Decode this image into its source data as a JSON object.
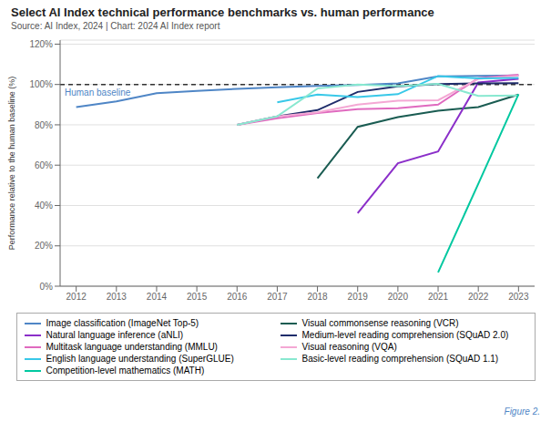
{
  "chart_data": {
    "type": "line",
    "title": "Select AI Index technical performance benchmarks vs. human performance",
    "subtitle": "Source: AI Index, 2024 | Chart: 2024 AI Index report",
    "y_label": "Performance relative to the human baseline (%)",
    "annotations": [
      "Figure 2."
    ],
    "xlim": [
      2011.6,
      2023.4
    ],
    "xticks": [
      2012,
      2013,
      2014,
      2015,
      2016,
      2017,
      2018,
      2019,
      2020,
      2021,
      2022,
      2023
    ],
    "ylim": [
      0,
      1.22
    ],
    "yticks": [
      {
        "value": 0,
        "label": "0%"
      },
      {
        "value": 0.2,
        "label": "20%"
      },
      {
        "value": 0.4,
        "label": "40%"
      },
      {
        "value": 0.6,
        "label": "60%"
      },
      {
        "value": 0.8,
        "label": "80%"
      },
      {
        "value": 1.0,
        "label": "100%"
      },
      {
        "value": 1.2,
        "label": "120%"
      }
    ],
    "grid": true,
    "reference_lines": [
      {
        "y": 1.0,
        "label": "Human baseline",
        "color": "#333333",
        "line_style": "dashed"
      }
    ],
    "series": [
      {
        "name": "Image classification (ImageNet Top-5)",
        "color": "#4f86c6",
        "x": [
          2012,
          2013,
          2014,
          2015,
          2016,
          2017,
          2018,
          2019,
          2020,
          2021,
          2022,
          2023
        ],
        "values": [
          0.888,
          0.916,
          0.957,
          0.968,
          0.978,
          0.986,
          0.993,
          0.998,
          1.005,
          1.04,
          1.043,
          1.045
        ]
      },
      {
        "name": "Visual commonsense reasoning (VCR)",
        "color": "#1a5c52",
        "x": [
          2018,
          2019,
          2020,
          2021,
          2022,
          2023
        ],
        "values": [
          0.535,
          0.79,
          0.838,
          0.87,
          0.888,
          0.95
        ]
      },
      {
        "name": "Natural language inference (aNLI)",
        "color": "#8b2fc9",
        "x": [
          2019,
          2020,
          2021,
          2022,
          2023
        ],
        "values": [
          0.362,
          0.61,
          0.668,
          1.01,
          1.028
        ]
      },
      {
        "name": "Medium-level reading comprehension (SQuAD 2.0)",
        "color": "#1f2d6b",
        "x": [
          2016,
          2017,
          2018,
          2019,
          2020,
          2021,
          2022,
          2023
        ],
        "values": [
          0.8,
          0.842,
          0.873,
          0.963,
          0.991,
          1.002,
          1.005,
          1.006
        ]
      },
      {
        "name": "Multitask language understanding (MMLU)",
        "color": "#e06abf",
        "x": [
          2016,
          2017,
          2018,
          2019,
          2020,
          2021,
          2022,
          2023
        ],
        "values": [
          0.8,
          0.832,
          0.858,
          0.878,
          0.882,
          0.9,
          1.032,
          1.048
        ]
      },
      {
        "name": "Visual reasoning (VQA)",
        "color": "#f4a8d4",
        "x": [
          2016,
          2017,
          2018,
          2019,
          2020,
          2021,
          2022,
          2023
        ],
        "values": [
          0.8,
          0.842,
          0.862,
          0.9,
          0.92,
          0.922,
          1.028,
          1.043
        ]
      },
      {
        "name": "English language understanding (SuperGLUE)",
        "color": "#38c8e8",
        "x": [
          2017,
          2018,
          2019,
          2020,
          2021,
          2022,
          2023
        ],
        "values": [
          0.912,
          0.95,
          0.938,
          0.952,
          1.042,
          1.03,
          1.032
        ]
      },
      {
        "name": "Basic-level reading comprehension (SQuAD 1.1)",
        "color": "#88e8d0",
        "x": [
          2016,
          2017,
          2018,
          2019,
          2020,
          2021,
          2022,
          2023
        ],
        "values": [
          0.8,
          0.842,
          0.98,
          1.0,
          0.992,
          1.003,
          0.943,
          0.946
        ]
      },
      {
        "name": "Competition-level mathematics (MATH)",
        "color": "#00c8a0",
        "x": [
          2021,
          2022,
          2023
        ],
        "values": [
          0.068,
          0.508,
          0.952
        ]
      }
    ]
  }
}
